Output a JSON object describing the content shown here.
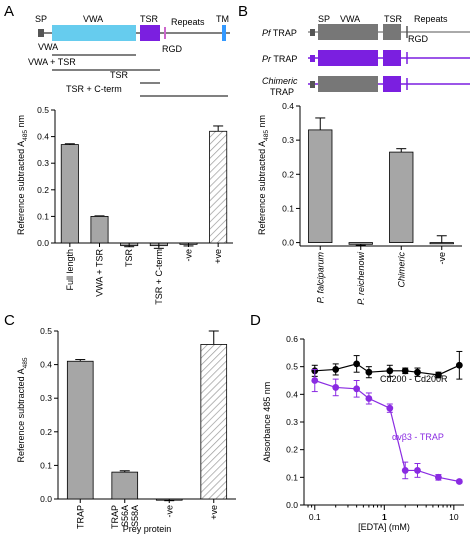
{
  "figure": {
    "panels": [
      {
        "label": "A"
      },
      {
        "label": "B"
      },
      {
        "label": "C"
      },
      {
        "label": "D"
      }
    ]
  },
  "schematic_a": {
    "domains": {
      "sp": "SP",
      "vwa": "VWA",
      "tsr": "TSR",
      "repeats": "Repeats",
      "tm": "TM",
      "rgd": "RGD"
    },
    "constructs": [
      "VWA",
      "VWA + TSR",
      "TSR",
      "TSR + C-term"
    ]
  },
  "schematic_b": {
    "domains": {
      "sp": "SP",
      "vwa": "VWA",
      "tsr": "TSR",
      "repeats": "Repeats",
      "rgd": "RGD"
    },
    "rows": [
      {
        "species": "Pf",
        "suffix": " TRAP"
      },
      {
        "species": "Pr",
        "suffix": " TRAP"
      },
      {
        "species": "Chimeric",
        "suffix": ""
      }
    ],
    "row3_line2": "TRAP"
  },
  "chart_data": [
    {
      "type": "bar",
      "panel": "A",
      "ylabel_main": "Reference subtracted A",
      "ylabel_sub": "485",
      "ylabel_tail": " nm",
      "ylim": [
        0,
        0.5
      ],
      "yticks": [
        "0.0",
        "0.1",
        "0.2",
        "0.3",
        "0.4",
        "0.5"
      ],
      "categories": [
        "Full length",
        "VWA + TSR",
        "TSR",
        "TSR + C-term",
        "-ve",
        "+ve"
      ],
      "values": [
        0.37,
        0.1,
        -0.01,
        -0.01,
        -0.005,
        0.42
      ],
      "errors": [
        0.003,
        0.002,
        0.004,
        0.01,
        0.006,
        0.02
      ],
      "hatched": [
        false,
        false,
        false,
        false,
        false,
        true
      ],
      "colors": {
        "bar": "#a6a6a6",
        "hatch": "#999999"
      }
    },
    {
      "type": "bar",
      "panel": "B",
      "ylabel_main": "Reference subtracted A",
      "ylabel_sub": "485",
      "ylabel_tail": " nm",
      "ylim": [
        -0.01,
        0.4
      ],
      "yticks": [
        "0.0",
        "0.1",
        "0.2",
        "0.3",
        "0.4"
      ],
      "categories": [
        "P. falciparum",
        "P. reichenowi",
        "Chimeric",
        "-ve"
      ],
      "values": [
        0.33,
        -0.005,
        0.265,
        0.0
      ],
      "errors": [
        0.035,
        0.003,
        0.01,
        0.02
      ],
      "hatched": [
        false,
        false,
        false,
        false
      ],
      "italic": [
        true,
        true,
        true,
        false
      ],
      "colors": {
        "bar": "#a6a6a6"
      }
    },
    {
      "type": "bar",
      "panel": "C",
      "ylabel_main": "Reference subtracted A",
      "ylabel_sub": "485",
      "ylabel_tail": "",
      "xlabel": "Prey protein",
      "ylim": [
        0,
        0.5
      ],
      "yticks": [
        "0.0",
        "0.1",
        "0.2",
        "0.3",
        "0.4",
        "0.5"
      ],
      "categories": [
        [
          "TRAP"
        ],
        [
          "TRAP",
          "S56A",
          "S58A"
        ],
        [
          "-ve"
        ],
        [
          "+ve"
        ]
      ],
      "values": [
        0.41,
        0.08,
        -0.003,
        0.46
      ],
      "errors": [
        0.005,
        0.004,
        0.002,
        0.04
      ],
      "hatched": [
        false,
        false,
        false,
        true
      ],
      "colors": {
        "bar": "#a6a6a6",
        "hatch": "#999999"
      }
    },
    {
      "type": "line",
      "panel": "D",
      "ylabel": "Absorbance 485 nm",
      "xlabel": "[EDTA] (mM)",
      "xscale": "log",
      "xlim": [
        0.07,
        14
      ],
      "ylim": [
        0,
        0.6
      ],
      "xticks": [
        "0.1",
        "1",
        "10"
      ],
      "yticks": [
        "0.0",
        "0.1",
        "0.2",
        "0.3",
        "0.4",
        "0.5",
        "0.6"
      ],
      "series": [
        {
          "name": "Cd200 - Cd200R",
          "color": "#000000",
          "x": [
            0.1,
            0.2,
            0.4,
            0.6,
            1.2,
            2.0,
            3.0,
            6.0,
            12.0
          ],
          "y": [
            0.485,
            0.49,
            0.51,
            0.48,
            0.485,
            0.485,
            0.48,
            0.47,
            0.505
          ],
          "err": [
            0.02,
            0.02,
            0.03,
            0.02,
            0.02,
            0.01,
            0.015,
            0.01,
            0.05
          ]
        },
        {
          "name": "αvβ3 - TRAP",
          "color": "#8a2be2",
          "x": [
            0.1,
            0.2,
            0.4,
            0.6,
            1.2,
            2.0,
            3.0,
            6.0,
            12.0
          ],
          "y": [
            0.45,
            0.425,
            0.42,
            0.385,
            0.35,
            0.125,
            0.125,
            0.1,
            0.085
          ],
          "err": [
            0.04,
            0.03,
            0.03,
            0.02,
            0.015,
            0.03,
            0.025,
            0.01,
            0.005
          ]
        }
      ]
    }
  ]
}
